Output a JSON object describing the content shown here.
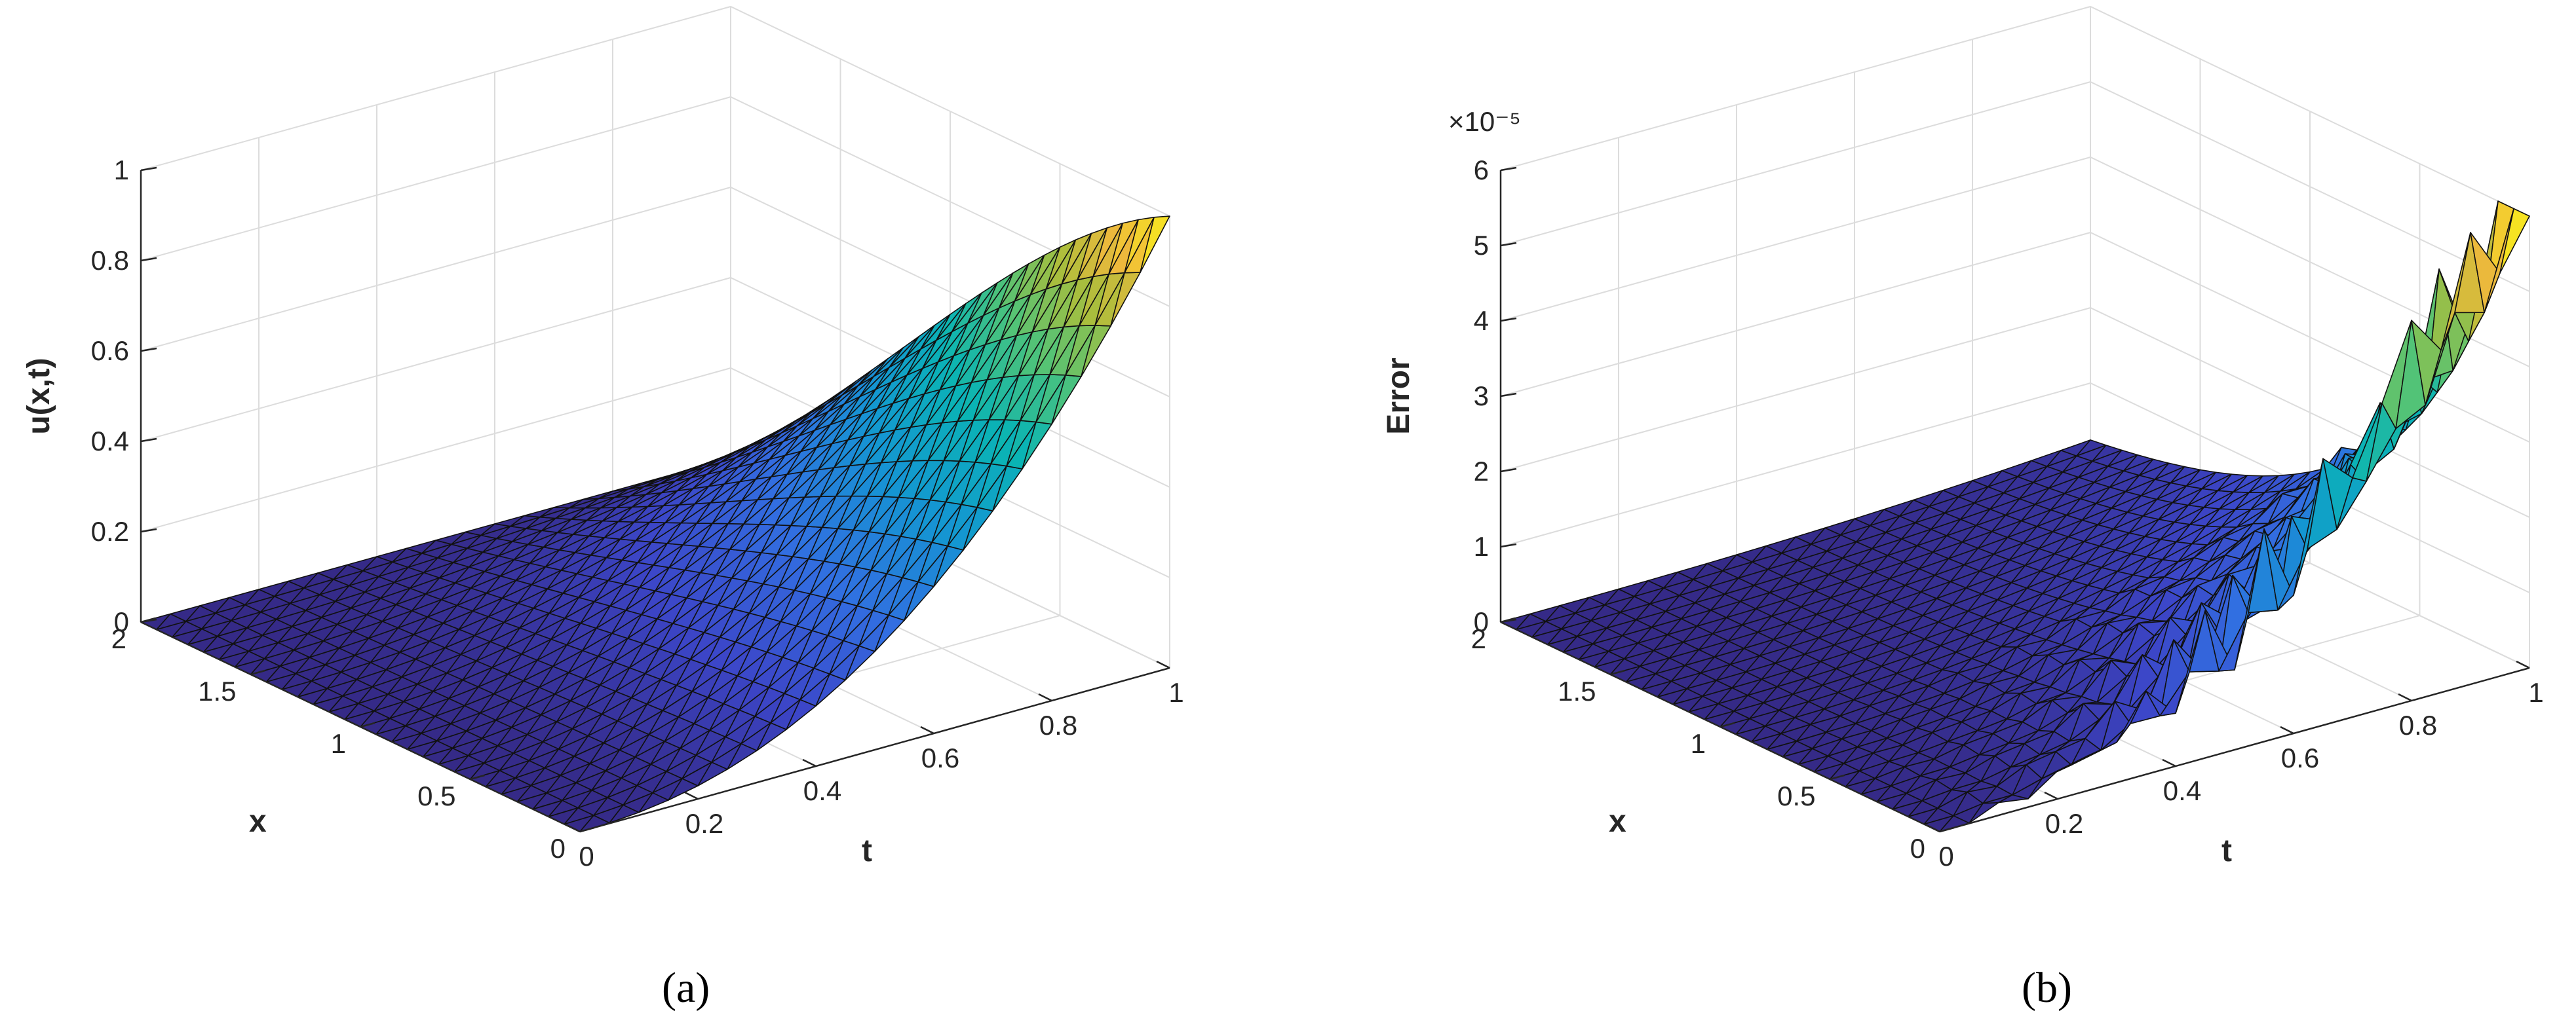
{
  "chart_data": [
    {
      "type": "surface",
      "caption": "(a)",
      "zlabel": "u(x,t)",
      "xlabel": "x",
      "tlabel": "t",
      "xlim": [
        0,
        2
      ],
      "tlim": [
        0,
        1
      ],
      "zlim": [
        0,
        1
      ],
      "x_ticks": [
        "0",
        "0.5",
        "1",
        "1.5",
        "2"
      ],
      "t_ticks": [
        "0",
        "0.2",
        "0.4",
        "0.6",
        "0.8",
        "1"
      ],
      "z_ticks": [
        "0",
        "0.2",
        "0.4",
        "0.6",
        "0.8",
        "1"
      ],
      "z_exponent_label": "",
      "grid": true,
      "colormap": "parula",
      "peak": {
        "x": 0,
        "t": 1,
        "z": 1
      }
    },
    {
      "type": "surface",
      "caption": "(b)",
      "zlabel": "Error",
      "xlabel": "x",
      "tlabel": "t",
      "xlim": [
        0,
        2
      ],
      "tlim": [
        0,
        1
      ],
      "zlim": [
        0,
        6e-05
      ],
      "x_ticks": [
        "0",
        "0.5",
        "1",
        "1.5",
        "2"
      ],
      "t_ticks": [
        "0",
        "0.2",
        "0.4",
        "0.6",
        "0.8",
        "1"
      ],
      "z_ticks": [
        "0",
        "1",
        "2",
        "3",
        "4",
        "5",
        "6"
      ],
      "z_exponent_label": "×10⁻⁵",
      "grid": true,
      "colormap": "parula",
      "peak": {
        "x": 0,
        "t": 1,
        "z": 6.1e-05
      }
    }
  ]
}
